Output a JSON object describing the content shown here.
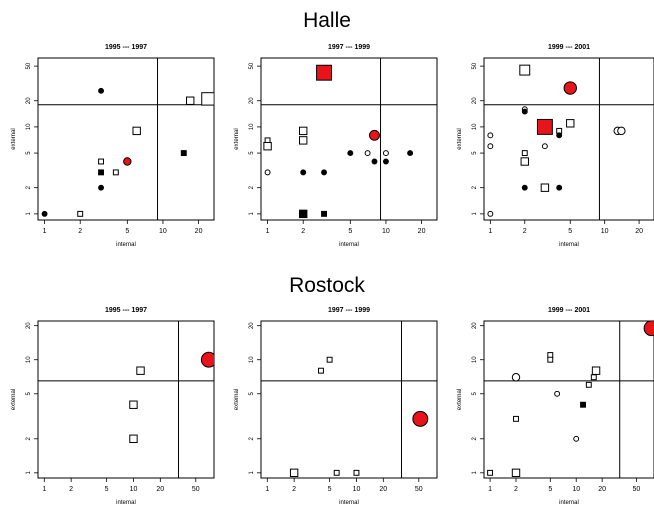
{
  "figure": {
    "group_titles": [
      "Halle",
      "Rostock"
    ]
  },
  "chart_data": [
    {
      "type": "scatter",
      "group": "Halle",
      "title": "1995 --- 1997",
      "xlabel": "internal",
      "ylabel": "external",
      "x_scale": "log",
      "y_scale": "log",
      "xticks": [
        1,
        2,
        5,
        10,
        20
      ],
      "yticks": [
        1,
        2,
        5,
        10,
        20,
        50
      ],
      "xlim": [
        0.88,
        27
      ],
      "ylim": [
        0.85,
        62
      ],
      "ref_x": 9,
      "ref_y": 18,
      "points": [
        {
          "x": 1,
          "y": 1,
          "shape": "circle",
          "size": 1,
          "fill": "black"
        },
        {
          "x": 2,
          "y": 1,
          "shape": "square",
          "size": 1,
          "fill": "white"
        },
        {
          "x": 3,
          "y": 26,
          "shape": "circle",
          "size": 1,
          "fill": "black"
        },
        {
          "x": 3,
          "y": 4,
          "shape": "square",
          "size": 1,
          "fill": "white"
        },
        {
          "x": 3,
          "y": 3,
          "shape": "square",
          "size": 1,
          "fill": "black"
        },
        {
          "x": 3,
          "y": 2,
          "shape": "circle",
          "size": 1,
          "fill": "black"
        },
        {
          "x": 4,
          "y": 3,
          "shape": "square",
          "size": 1,
          "fill": "white"
        },
        {
          "x": 5,
          "y": 4,
          "shape": "circle",
          "size": 2,
          "fill": "red"
        },
        {
          "x": 6,
          "y": 9,
          "shape": "square",
          "size": 2,
          "fill": "white"
        },
        {
          "x": 15,
          "y": 5,
          "shape": "square",
          "size": 1,
          "fill": "black"
        },
        {
          "x": 17,
          "y": 20,
          "shape": "square",
          "size": 2,
          "fill": "white"
        },
        {
          "x": 24,
          "y": 21,
          "shape": "square",
          "size": 4,
          "fill": "white"
        }
      ]
    },
    {
      "type": "scatter",
      "group": "Halle",
      "title": "1997 --- 1999",
      "xlabel": "internal",
      "ylabel": "external",
      "x_scale": "log",
      "y_scale": "log",
      "xticks": [
        1,
        2,
        5,
        10,
        20
      ],
      "yticks": [
        1,
        2,
        5,
        10,
        20,
        50
      ],
      "xlim": [
        0.88,
        27
      ],
      "ylim": [
        0.85,
        62
      ],
      "ref_x": 9,
      "ref_y": 18,
      "points": [
        {
          "x": 1,
          "y": 7,
          "shape": "square",
          "size": 1,
          "fill": "white"
        },
        {
          "x": 1,
          "y": 6,
          "shape": "square",
          "size": 2,
          "fill": "white"
        },
        {
          "x": 1,
          "y": 3,
          "shape": "circle",
          "size": 1,
          "fill": "white"
        },
        {
          "x": 2,
          "y": 9,
          "shape": "square",
          "size": 2,
          "fill": "white"
        },
        {
          "x": 2,
          "y": 7,
          "shape": "square",
          "size": 2,
          "fill": "white"
        },
        {
          "x": 2,
          "y": 3,
          "shape": "circle",
          "size": 1,
          "fill": "black"
        },
        {
          "x": 2,
          "y": 1,
          "shape": "square",
          "size": 2,
          "fill": "black"
        },
        {
          "x": 3,
          "y": 42,
          "shape": "square",
          "size": 5,
          "fill": "red"
        },
        {
          "x": 3,
          "y": 3,
          "shape": "circle",
          "size": 1,
          "fill": "black"
        },
        {
          "x": 3,
          "y": 1,
          "shape": "square",
          "size": 1,
          "fill": "black"
        },
        {
          "x": 5,
          "y": 5,
          "shape": "circle",
          "size": 1,
          "fill": "black"
        },
        {
          "x": 7,
          "y": 5,
          "shape": "circle",
          "size": 1,
          "fill": "white"
        },
        {
          "x": 8,
          "y": 8,
          "shape": "circle",
          "size": 3,
          "fill": "red"
        },
        {
          "x": 8,
          "y": 4,
          "shape": "circle",
          "size": 1,
          "fill": "black"
        },
        {
          "x": 10,
          "y": 5,
          "shape": "circle",
          "size": 1,
          "fill": "white"
        },
        {
          "x": 10,
          "y": 4,
          "shape": "circle",
          "size": 1,
          "fill": "black"
        },
        {
          "x": 16,
          "y": 5,
          "shape": "circle",
          "size": 1,
          "fill": "black"
        }
      ]
    },
    {
      "type": "scatter",
      "group": "Halle",
      "title": "1999 --- 2001",
      "xlabel": "internal",
      "ylabel": "external",
      "x_scale": "log",
      "y_scale": "log",
      "xticks": [
        1,
        2,
        5,
        10,
        20
      ],
      "yticks": [
        1,
        2,
        5,
        10,
        20,
        50
      ],
      "xlim": [
        0.88,
        27
      ],
      "ylim": [
        0.85,
        62
      ],
      "ref_x": 9,
      "ref_y": 18,
      "points": [
        {
          "x": 1,
          "y": 8,
          "shape": "circle",
          "size": 1,
          "fill": "white"
        },
        {
          "x": 1,
          "y": 6,
          "shape": "circle",
          "size": 1,
          "fill": "white"
        },
        {
          "x": 1,
          "y": 1,
          "shape": "circle",
          "size": 1,
          "fill": "white"
        },
        {
          "x": 2,
          "y": 45,
          "shape": "square",
          "size": 3,
          "fill": "white"
        },
        {
          "x": 2,
          "y": 16,
          "shape": "circle",
          "size": 1,
          "fill": "white"
        },
        {
          "x": 2,
          "y": 15,
          "shape": "circle",
          "size": 1,
          "fill": "black"
        },
        {
          "x": 2,
          "y": 5,
          "shape": "square",
          "size": 1,
          "fill": "white"
        },
        {
          "x": 2,
          "y": 4,
          "shape": "square",
          "size": 2,
          "fill": "white"
        },
        {
          "x": 2,
          "y": 2,
          "shape": "circle",
          "size": 1,
          "fill": "black"
        },
        {
          "x": 3,
          "y": 10,
          "shape": "square",
          "size": 5,
          "fill": "red"
        },
        {
          "x": 3,
          "y": 6,
          "shape": "circle",
          "size": 1,
          "fill": "white"
        },
        {
          "x": 3,
          "y": 2,
          "shape": "square",
          "size": 2,
          "fill": "white"
        },
        {
          "x": 4,
          "y": 9,
          "shape": "square",
          "size": 1,
          "fill": "white"
        },
        {
          "x": 4,
          "y": 8,
          "shape": "circle",
          "size": 1,
          "fill": "black"
        },
        {
          "x": 4,
          "y": 2,
          "shape": "circle",
          "size": 1,
          "fill": "black"
        },
        {
          "x": 5,
          "y": 28,
          "shape": "circle",
          "size": 4,
          "fill": "red"
        },
        {
          "x": 5,
          "y": 11,
          "shape": "square",
          "size": 2,
          "fill": "white"
        },
        {
          "x": 13,
          "y": 9,
          "shape": "circle",
          "size": 2,
          "fill": "white"
        },
        {
          "x": 14,
          "y": 9,
          "shape": "circle",
          "size": 2,
          "fill": "white"
        }
      ]
    },
    {
      "type": "scatter",
      "group": "Rostock",
      "title": "1995 --- 1997",
      "xlabel": "internal",
      "ylabel": "external",
      "x_scale": "log",
      "y_scale": "log",
      "xticks": [
        1,
        2,
        5,
        10,
        20,
        50
      ],
      "yticks": [
        1,
        2,
        5,
        10,
        20
      ],
      "xlim": [
        0.85,
        80
      ],
      "ylim": [
        0.9,
        22
      ],
      "ref_x": 32,
      "ref_y": 6.5,
      "points": [
        {
          "x": 10,
          "y": 4,
          "shape": "square",
          "size": 2,
          "fill": "white"
        },
        {
          "x": 10,
          "y": 2,
          "shape": "square",
          "size": 2,
          "fill": "white"
        },
        {
          "x": 12,
          "y": 8,
          "shape": "square",
          "size": 2,
          "fill": "white"
        },
        {
          "x": 70,
          "y": 10,
          "shape": "circle",
          "size": 5,
          "fill": "red"
        }
      ]
    },
    {
      "type": "scatter",
      "group": "Rostock",
      "title": "1997 --- 1999",
      "xlabel": "internal",
      "ylabel": "external",
      "x_scale": "log",
      "y_scale": "log",
      "xticks": [
        1,
        2,
        5,
        10,
        20,
        50
      ],
      "yticks": [
        1,
        2,
        5,
        10,
        20
      ],
      "xlim": [
        0.85,
        80
      ],
      "ylim": [
        0.9,
        22
      ],
      "ref_x": 32,
      "ref_y": 6.5,
      "points": [
        {
          "x": 2,
          "y": 1,
          "shape": "square",
          "size": 2,
          "fill": "white"
        },
        {
          "x": 4,
          "y": 8,
          "shape": "square",
          "size": 1,
          "fill": "white"
        },
        {
          "x": 5,
          "y": 10,
          "shape": "square",
          "size": 1,
          "fill": "white"
        },
        {
          "x": 6,
          "y": 1,
          "shape": "square",
          "size": 1,
          "fill": "white"
        },
        {
          "x": 10,
          "y": 1,
          "shape": "square",
          "size": 1,
          "fill": "white"
        },
        {
          "x": 52,
          "y": 3,
          "shape": "circle",
          "size": 5,
          "fill": "red"
        }
      ]
    },
    {
      "type": "scatter",
      "group": "Rostock",
      "title": "1999 --- 2001",
      "xlabel": "internal",
      "ylabel": "external",
      "x_scale": "log",
      "y_scale": "log",
      "xticks": [
        1,
        2,
        5,
        10,
        20,
        50
      ],
      "yticks": [
        1,
        2,
        5,
        10,
        20
      ],
      "xlim": [
        0.85,
        80
      ],
      "ylim": [
        0.9,
        22
      ],
      "ref_x": 32,
      "ref_y": 6.5,
      "points": [
        {
          "x": 1,
          "y": 1,
          "shape": "square",
          "size": 1,
          "fill": "white"
        },
        {
          "x": 2,
          "y": 7,
          "shape": "circle",
          "size": 2,
          "fill": "white"
        },
        {
          "x": 2,
          "y": 3,
          "shape": "square",
          "size": 1,
          "fill": "white"
        },
        {
          "x": 2,
          "y": 1,
          "shape": "square",
          "size": 2,
          "fill": "white"
        },
        {
          "x": 5,
          "y": 11,
          "shape": "square",
          "size": 1,
          "fill": "white"
        },
        {
          "x": 5,
          "y": 10,
          "shape": "square",
          "size": 1,
          "fill": "white"
        },
        {
          "x": 6,
          "y": 5,
          "shape": "circle",
          "size": 1,
          "fill": "white"
        },
        {
          "x": 10,
          "y": 2,
          "shape": "circle",
          "size": 1,
          "fill": "white"
        },
        {
          "x": 12,
          "y": 4,
          "shape": "square",
          "size": 1,
          "fill": "black"
        },
        {
          "x": 14,
          "y": 6,
          "shape": "square",
          "size": 1,
          "fill": "white"
        },
        {
          "x": 16,
          "y": 7,
          "shape": "square",
          "size": 1,
          "fill": "white"
        },
        {
          "x": 17,
          "y": 8,
          "shape": "square",
          "size": 2,
          "fill": "white"
        },
        {
          "x": 75,
          "y": 19,
          "shape": "circle",
          "size": 5,
          "fill": "red"
        }
      ]
    }
  ]
}
